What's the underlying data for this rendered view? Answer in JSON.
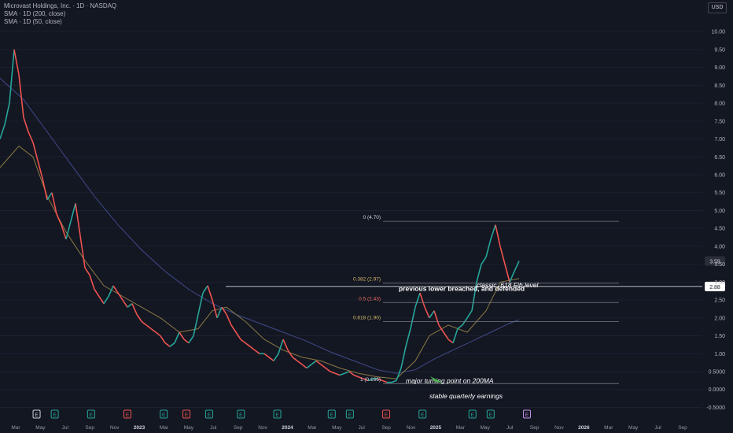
{
  "header": {
    "title": "Microvast Holdings, Inc. · 1D · NASDAQ",
    "indicators": [
      "SMA · 1D (200, close)",
      "SMA · 1D (50, close)"
    ],
    "currency": "USD"
  },
  "colors": {
    "background": "#131722",
    "up": "#26a69a",
    "down": "#ef5350",
    "sma200": "#3f4a8a",
    "sma50": "#8a7a44",
    "fib_line": "#787b86",
    "fib_label": "#d1d4dc",
    "fib_05": "#ef6c5a",
    "fib_0618": "#d9b86a",
    "annotation": "#ffffff",
    "price_tag": "#2a2e39"
  },
  "chart_data": {
    "type": "line",
    "y_axis": {
      "range": [
        -0.6,
        10.4
      ],
      "ticks": [
        "10.00",
        "9.50",
        "9.00",
        "8.50",
        "8.00",
        "7.50",
        "7.00",
        "6.50",
        "6.00",
        "5.50",
        "5.00",
        "4.50",
        "4.00",
        "3.50",
        "3.00",
        "2.50",
        "2.00",
        "1.50",
        "1.00",
        "0.5000",
        "0.0000",
        "-0.5000"
      ]
    },
    "x_axis": {
      "ticks": [
        "Mar",
        "May",
        "Jul",
        "Sep",
        "Nov",
        "2023",
        "Mar",
        "May",
        "Jul",
        "Sep",
        "Nov",
        "2024",
        "Mar",
        "May",
        "Jul",
        "Sep",
        "Nov",
        "2025",
        "Mar",
        "May",
        "Jul",
        "Sep",
        "Nov",
        "2026",
        "Mar",
        "May",
        "Jul",
        "Sep"
      ],
      "bold_ticks": [
        "2023",
        "2024",
        "2025",
        "2026"
      ]
    },
    "price_series": {
      "name": "MVST",
      "points": [
        [
          0,
          7.0
        ],
        [
          1,
          7.4
        ],
        [
          2,
          8.0
        ],
        [
          3,
          9.5
        ],
        [
          4,
          8.8
        ],
        [
          5,
          7.6
        ],
        [
          6,
          7.2
        ],
        [
          7,
          6.9
        ],
        [
          8,
          6.4
        ],
        [
          9,
          5.9
        ],
        [
          10,
          5.3
        ],
        [
          11,
          5.5
        ],
        [
          12,
          4.9
        ],
        [
          13,
          4.6
        ],
        [
          14,
          4.2
        ],
        [
          15,
          4.7
        ],
        [
          16,
          5.2
        ],
        [
          17,
          4.3
        ],
        [
          18,
          3.4
        ],
        [
          19,
          3.2
        ],
        [
          20,
          2.8
        ],
        [
          21,
          2.6
        ],
        [
          22,
          2.4
        ],
        [
          23,
          2.6
        ],
        [
          24,
          2.9
        ],
        [
          25,
          2.7
        ],
        [
          26,
          2.5
        ],
        [
          27,
          2.3
        ],
        [
          28,
          2.4
        ],
        [
          29,
          2.1
        ],
        [
          30,
          1.9
        ],
        [
          31,
          1.8
        ],
        [
          32,
          1.7
        ],
        [
          33,
          1.6
        ],
        [
          34,
          1.5
        ],
        [
          35,
          1.3
        ],
        [
          36,
          1.2
        ],
        [
          37,
          1.3
        ],
        [
          38,
          1.6
        ],
        [
          39,
          1.4
        ],
        [
          40,
          1.3
        ],
        [
          41,
          1.5
        ],
        [
          42,
          2.1
        ],
        [
          43,
          2.7
        ],
        [
          44,
          2.9
        ],
        [
          45,
          2.5
        ],
        [
          46,
          2.0
        ],
        [
          47,
          2.3
        ],
        [
          48,
          2.1
        ],
        [
          49,
          1.8
        ],
        [
          50,
          1.6
        ],
        [
          51,
          1.4
        ],
        [
          52,
          1.3
        ],
        [
          53,
          1.2
        ],
        [
          54,
          1.1
        ],
        [
          55,
          1.0
        ],
        [
          56,
          1.0
        ],
        [
          57,
          0.9
        ],
        [
          58,
          0.8
        ],
        [
          59,
          1.0
        ],
        [
          60,
          1.4
        ],
        [
          61,
          1.1
        ],
        [
          62,
          0.9
        ],
        [
          63,
          0.8
        ],
        [
          64,
          0.7
        ],
        [
          65,
          0.6
        ],
        [
          66,
          0.7
        ],
        [
          67,
          0.8
        ],
        [
          68,
          0.7
        ],
        [
          69,
          0.6
        ],
        [
          70,
          0.5
        ],
        [
          71,
          0.45
        ],
        [
          72,
          0.4
        ],
        [
          73,
          0.45
        ],
        [
          74,
          0.5
        ],
        [
          75,
          0.4
        ],
        [
          76,
          0.35
        ],
        [
          77,
          0.3
        ],
        [
          78,
          0.25
        ],
        [
          79,
          0.3
        ],
        [
          80,
          0.3
        ],
        [
          81,
          0.25
        ],
        [
          82,
          0.2
        ],
        [
          83,
          0.2
        ],
        [
          84,
          0.25
        ],
        [
          85,
          0.6
        ],
        [
          86,
          1.2
        ],
        [
          87,
          1.7
        ],
        [
          88,
          2.3
        ],
        [
          89,
          2.7
        ],
        [
          90,
          2.3
        ],
        [
          91,
          2.0
        ],
        [
          92,
          2.2
        ],
        [
          93,
          1.8
        ],
        [
          94,
          1.6
        ],
        [
          95,
          1.4
        ],
        [
          96,
          1.3
        ],
        [
          97,
          1.7
        ],
        [
          98,
          1.8
        ],
        [
          99,
          2.0
        ],
        [
          100,
          2.2
        ],
        [
          101,
          3.0
        ],
        [
          102,
          3.5
        ],
        [
          103,
          3.7
        ],
        [
          104,
          4.2
        ],
        [
          105,
          4.6
        ],
        [
          106,
          4.0
        ],
        [
          107,
          3.5
        ],
        [
          108,
          3.0
        ],
        [
          109,
          3.3
        ],
        [
          110,
          3.59
        ]
      ]
    },
    "sma200": [
      [
        0,
        8.7
      ],
      [
        5,
        8.1
      ],
      [
        10,
        7.2
      ],
      [
        15,
        6.3
      ],
      [
        20,
        5.4
      ],
      [
        25,
        4.6
      ],
      [
        30,
        3.9
      ],
      [
        35,
        3.3
      ],
      [
        40,
        2.8
      ],
      [
        45,
        2.4
      ],
      [
        50,
        2.1
      ],
      [
        55,
        1.85
      ],
      [
        60,
        1.6
      ],
      [
        65,
        1.35
      ],
      [
        70,
        1.05
      ],
      [
        75,
        0.8
      ],
      [
        80,
        0.55
      ],
      [
        84,
        0.45
      ],
      [
        88,
        0.55
      ],
      [
        92,
        0.85
      ],
      [
        96,
        1.1
      ],
      [
        100,
        1.35
      ],
      [
        104,
        1.6
      ],
      [
        108,
        1.85
      ],
      [
        110,
        1.95
      ]
    ],
    "sma50": [
      [
        0,
        6.2
      ],
      [
        4,
        6.8
      ],
      [
        7,
        6.5
      ],
      [
        10,
        5.4
      ],
      [
        14,
        4.4
      ],
      [
        18,
        3.6
      ],
      [
        22,
        2.9
      ],
      [
        26,
        2.6
      ],
      [
        30,
        2.3
      ],
      [
        34,
        2.0
      ],
      [
        38,
        1.6
      ],
      [
        42,
        1.7
      ],
      [
        45,
        2.2
      ],
      [
        48,
        2.3
      ],
      [
        52,
        1.9
      ],
      [
        56,
        1.4
      ],
      [
        60,
        1.1
      ],
      [
        64,
        0.9
      ],
      [
        68,
        0.8
      ],
      [
        72,
        0.6
      ],
      [
        76,
        0.45
      ],
      [
        80,
        0.35
      ],
      [
        84,
        0.3
      ],
      [
        88,
        0.8
      ],
      [
        91,
        1.5
      ],
      [
        95,
        1.8
      ],
      [
        99,
        1.6
      ],
      [
        103,
        2.2
      ],
      [
        106,
        3.0
      ],
      [
        110,
        3.1
      ]
    ],
    "x_index_range": [
      0,
      110
    ],
    "fib_levels": [
      {
        "ratio": "0",
        "value": 4.7,
        "label": "0 (4.70)",
        "color_key": "fib_label"
      },
      {
        "ratio": "0.382",
        "value": 2.97,
        "label": "0.382 (2.97)",
        "color_key": "fib_0618"
      },
      {
        "ratio": "0.5",
        "value": 2.43,
        "label": "0.5 (2.43)",
        "color_key": "fib_05"
      },
      {
        "ratio": "0.618",
        "value": 1.9,
        "label": "0.618 (1.90)",
        "color_key": "fib_0618"
      },
      {
        "ratio": "1",
        "value": 0.166,
        "label": "1 (0.166)",
        "color_key": "fib_label"
      }
    ],
    "horizontal_line": {
      "value": 2.88,
      "label": "2.88"
    },
    "last_price": {
      "value": 3.59,
      "label": "3.59"
    },
    "annotations": [
      {
        "text": "previous lower breached, and defended",
        "x": 84.5,
        "y": 2.75
      },
      {
        "text": "classic .618 Fib level",
        "x": 101,
        "y": 2.85
      },
      {
        "text": "major turning point on 200MA",
        "x": 86,
        "y": 0.18
      },
      {
        "text": "stable quarterly earnings",
        "x": 91,
        "y": -0.25
      }
    ],
    "events": [
      {
        "text": "E",
        "x": 2,
        "kind": "white"
      },
      {
        "text": "E",
        "x": 6,
        "kind": "green"
      },
      {
        "text": "E",
        "x": 14,
        "kind": "green"
      },
      {
        "text": "E",
        "x": 22,
        "kind": "red"
      },
      {
        "text": "E",
        "x": 30,
        "kind": "green"
      },
      {
        "text": "E",
        "x": 35,
        "kind": "red"
      },
      {
        "text": "E",
        "x": 40,
        "kind": "green"
      },
      {
        "text": "E",
        "x": 47,
        "kind": "green"
      },
      {
        "text": "E",
        "x": 55,
        "kind": "green"
      },
      {
        "text": "E",
        "x": 67,
        "kind": "green"
      },
      {
        "text": "E",
        "x": 71,
        "kind": "green"
      },
      {
        "text": "E",
        "x": 79,
        "kind": "red"
      },
      {
        "text": "E",
        "x": 87,
        "kind": "green"
      },
      {
        "text": "E",
        "x": 98,
        "kind": "green"
      },
      {
        "text": "E",
        "x": 102,
        "kind": "green"
      },
      {
        "text": "E",
        "x": 110,
        "kind": "purple"
      }
    ]
  }
}
